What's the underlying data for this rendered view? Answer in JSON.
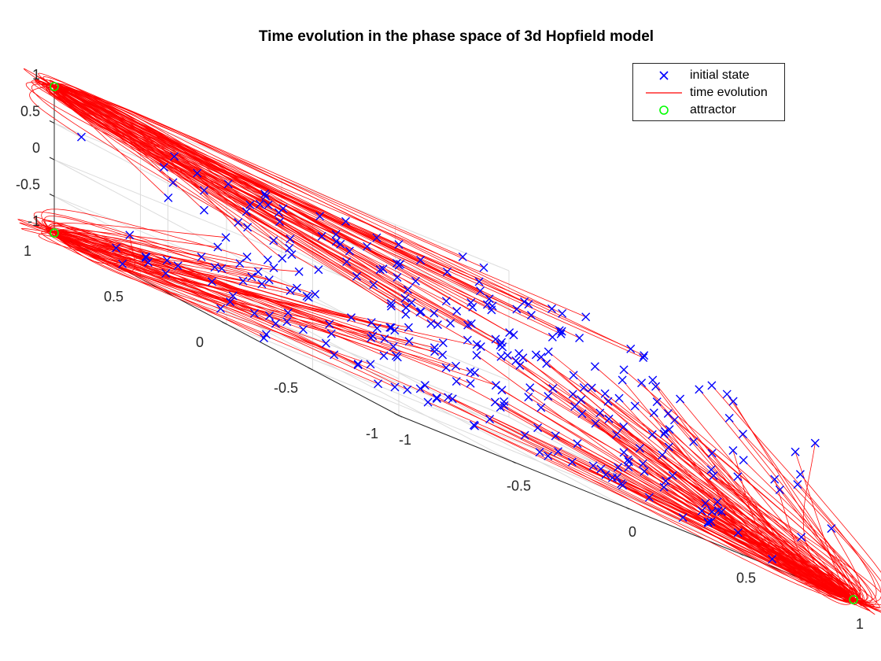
{
  "chart_data": {
    "type": "line3d",
    "title": "Time evolution in the phase space of 3d Hopfield model",
    "axes": {
      "x": {
        "range": [
          -1,
          1
        ],
        "ticks": [
          -1,
          -0.5,
          0,
          0.5,
          1
        ],
        "tick_labels": [
          "-1",
          "-0.5",
          "0",
          "0.5",
          "1"
        ]
      },
      "y": {
        "range": [
          -1,
          1
        ],
        "ticks": [
          -1,
          -0.5,
          0,
          0.5,
          1
        ],
        "tick_labels": [
          "-1",
          "-0.5",
          "0",
          "0.5",
          "1"
        ]
      },
      "z": {
        "range": [
          -1,
          1
        ],
        "ticks": [
          -1,
          -0.5,
          0,
          0.5,
          1
        ],
        "tick_labels": [
          "-1",
          "-0.5",
          "0",
          "0.5",
          "1"
        ]
      }
    },
    "grid": true,
    "legend": {
      "placement": "top-right",
      "entries": [
        {
          "label": "initial state",
          "marker": "x",
          "color": "#0000ff"
        },
        {
          "label": "time evolution",
          "marker": "line",
          "color": "#ff0000"
        },
        {
          "label": "attractor",
          "marker": "o",
          "color": "#00ff00"
        }
      ]
    },
    "attractors": [
      {
        "x": -1,
        "y": 1,
        "z": 1
      },
      {
        "x": -1,
        "y": 1,
        "z": -1
      },
      {
        "x": 1,
        "y": -1,
        "z": -1
      }
    ],
    "initial_state_count": 300,
    "colors": {
      "initial_state": "#0000ff",
      "time_evolution": "#ff0000",
      "attractor": "#00ff00"
    }
  }
}
